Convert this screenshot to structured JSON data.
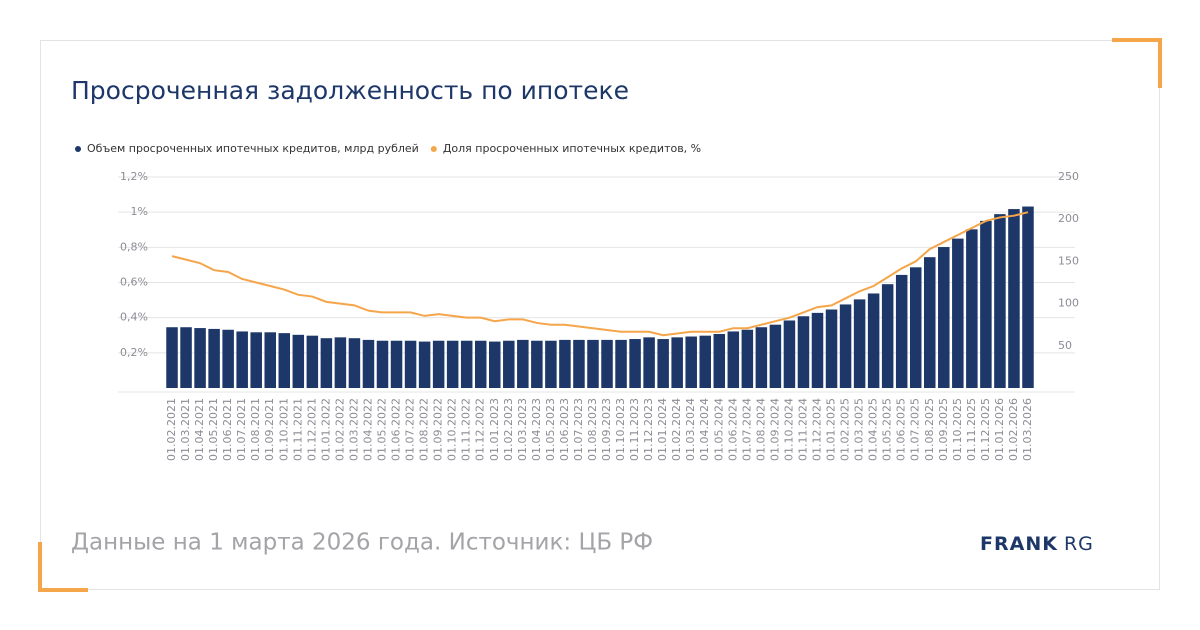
{
  "chart_data": {
    "type": "bar_line",
    "title": "Просроченная задолженность по ипотеке",
    "categories": [
      "01.02.2021",
      "01.03.2021",
      "01.04.2021",
      "01.05.2021",
      "01.06.2021",
      "01.07.2021",
      "01.08.2021",
      "01.09.2021",
      "01.10.2021",
      "01.11.2021",
      "01.12.2021",
      "01.01.2022",
      "01.02.2022",
      "01.03.2022",
      "01.04.2022",
      "01.05.2022",
      "01.06.2022",
      "01.07.2022",
      "01.08.2022",
      "01.09.2022",
      "01.10.2022",
      "01.11.2022",
      "01.12.2022",
      "01.01.2023",
      "01.02.2023",
      "01.03.2023",
      "01.04.2023",
      "01.05.2023",
      "01.06.2023",
      "01.07.2023",
      "01.08.2023",
      "01.09.2023",
      "01.10.2023",
      "01.11.2023",
      "01.12.2023",
      "01.01.2024",
      "01.02.2024",
      "01.03.2024",
      "01.04.2024",
      "01.05.2024",
      "01.06.2024",
      "01.07.2024",
      "01.08.2024",
      "01.09.2024",
      "01.10.2024",
      "01.11.2024",
      "01.12.2024",
      "01.01.2025",
      "01.02.2025",
      "01.03.2025",
      "01.04.2025",
      "01.05.2025",
      "01.06.2025",
      "01.07.2025",
      "01.08.2025",
      "01.09.2025",
      "01.10.2025",
      "01.11.2025",
      "01.12.2025",
      "01.01.2026",
      "01.02.2026",
      "01.03.2026"
    ],
    "series": [
      {
        "name": "Объем просроченных ипотечных кредитов, млрд рублей",
        "color": "#1c3768",
        "kind": "bar",
        "axis": "y2",
        "values": [
          72,
          72,
          71,
          70,
          69,
          67,
          66,
          66,
          65,
          63,
          62,
          59,
          60,
          59,
          57,
          56,
          56,
          56,
          55,
          56,
          56,
          56,
          56,
          55,
          56,
          57,
          56,
          56,
          57,
          57,
          57,
          57,
          57,
          58,
          60,
          58,
          60,
          61,
          62,
          64,
          67,
          69,
          72,
          75,
          80,
          85,
          89,
          93,
          99,
          105,
          112,
          123,
          134,
          143,
          155,
          167,
          177,
          188,
          198,
          206,
          212,
          215
        ]
      },
      {
        "name": "Доля просроченных ипотечных кредитов, %",
        "color": "#f5a54a",
        "kind": "line",
        "values": [
          0.75,
          0.73,
          0.71,
          0.67,
          0.66,
          0.62,
          0.6,
          0.58,
          0.56,
          0.53,
          0.52,
          0.49,
          0.48,
          0.47,
          0.44,
          0.43,
          0.43,
          0.43,
          0.41,
          0.42,
          0.41,
          0.4,
          0.4,
          0.38,
          0.39,
          0.39,
          0.37,
          0.36,
          0.36,
          0.35,
          0.34,
          0.33,
          0.32,
          0.32,
          0.32,
          0.3,
          0.31,
          0.32,
          0.32,
          0.32,
          0.34,
          0.34,
          0.36,
          0.38,
          0.4,
          0.43,
          0.46,
          0.47,
          0.51,
          0.55,
          0.58,
          0.63,
          0.68,
          0.72,
          0.79,
          0.83,
          0.87,
          0.91,
          0.95,
          0.97,
          0.98,
          1.0
        ]
      }
    ],
    "ylim": [
      0,
      1.2
    ],
    "yticks": [
      {
        "value": 0.2,
        "label": "0,2%"
      },
      {
        "value": 0.4,
        "label": "0,4%"
      },
      {
        "value": 0.6,
        "label": "0,6%"
      },
      {
        "value": 0.8,
        "label": "0,8%"
      },
      {
        "value": 1,
        "label": "1%"
      },
      {
        "value": 1.2,
        "label": "1,2%"
      }
    ],
    "y2lim": [
      0,
      250
    ],
    "y2ticks": [
      50,
      100,
      150,
      200,
      250
    ],
    "grid": true
  },
  "footer": {
    "source": "Данные на 1 марта 2026 года. Источник: ЦБ РФ",
    "logo_bold": "FRANK",
    "logo_light": "RG"
  }
}
